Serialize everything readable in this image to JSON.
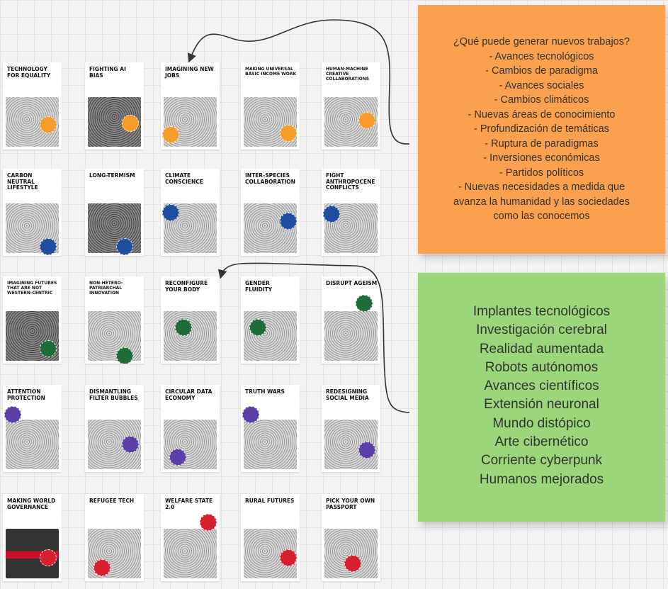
{
  "cards": [
    {
      "title": "TECHNOLOGY FOR EQUALITY",
      "badge": "#f59c2a",
      "tone": "light"
    },
    {
      "title": "FIGHTING AI BIAS",
      "badge": "#f59c2a",
      "tone": "dark"
    },
    {
      "title": "IMAGINING NEW JOBS",
      "badge": "#f59c2a",
      "tone": "light"
    },
    {
      "title": "MAKING UNIVERSAL BASIC INCOME WORK",
      "badge": "#f59c2a",
      "tone": "light"
    },
    {
      "title": "HUMAN-MACHINE CREATIVE COLLABORATIONS",
      "badge": "#f59c2a",
      "tone": "light"
    },
    {
      "title": "CARBON NEUTRAL LIFESTYLE",
      "badge": "#1f4ea1",
      "tone": "light"
    },
    {
      "title": "LONG-TERMISM",
      "badge": "#1f4ea1",
      "tone": "dark"
    },
    {
      "title": "CLIMATE CONSCIENCE",
      "badge": "#1f4ea1",
      "tone": "light"
    },
    {
      "title": "INTER-SPECIES COLLABORATION",
      "badge": "#1f4ea1",
      "tone": "light"
    },
    {
      "title": "FIGHT ANTHROPOCENE CONFLICTS",
      "badge": "#1f4ea1",
      "tone": "light"
    },
    {
      "title": "IMAGINING FUTURES THAT ARE NOT WESTERN-CENTRIC",
      "badge": "#1f6b3a",
      "tone": "dark"
    },
    {
      "title": "NON-HETERO-PATRIARCHAL INNOVATION",
      "badge": "#1f6b3a",
      "tone": "light"
    },
    {
      "title": "RECONFIGURE YOUR BODY",
      "badge": "#1f6b3a",
      "tone": "light"
    },
    {
      "title": "GENDER FLUIDITY",
      "badge": "#1f6b3a",
      "tone": "light"
    },
    {
      "title": "DISRUPT AGEISM",
      "badge": "#1f6b3a",
      "tone": "light"
    },
    {
      "title": "ATTENTION PROTECTION",
      "badge": "#5b3ea6",
      "tone": "light"
    },
    {
      "title": "DISMANTLING FILTER BUBBLES",
      "badge": "#5b3ea6",
      "tone": "light"
    },
    {
      "title": "CIRCULAR DATA ECONOMY",
      "badge": "#5b3ea6",
      "tone": "light"
    },
    {
      "title": "TRUTH WARS",
      "badge": "#5b3ea6",
      "tone": "light"
    },
    {
      "title": "REDESIGNING SOCIAL MEDIA",
      "badge": "#5b3ea6",
      "tone": "light"
    },
    {
      "title": "MAKING WORLD GOVERNANCE",
      "badge": "#d6202f",
      "tone": "red"
    },
    {
      "title": "REFUGEE TECH",
      "badge": "#d6202f",
      "tone": "light"
    },
    {
      "title": "WELFARE STATE 2.0",
      "badge": "#d6202f",
      "tone": "light"
    },
    {
      "title": "RURAL FUTURES",
      "badge": "#d6202f",
      "tone": "light"
    },
    {
      "title": "PICK YOUR OWN PASSPORT",
      "badge": "#d6202f",
      "tone": "light"
    }
  ],
  "notes": {
    "orange": {
      "color": "#fba04f",
      "lines": [
        "¿Qué puede generar nuevos trabajos?",
        "- Avances tecnológicos",
        "- Cambios de paradigma",
        "- Avances sociales",
        "- Cambios climáticos",
        "- Nuevas áreas de conocimiento",
        "- Profundización de temáticas",
        "- Ruptura de paradigmas",
        "- Inversiones económicas",
        "- Partidos políticos",
        "- Nuevas necesidades a medida que",
        "avanza la humanidad y las sociedades",
        "como las conocemos"
      ]
    },
    "green": {
      "color": "#9bd77a",
      "lines": [
        "Implantes tecnológicos",
        "Investigación cerebral",
        "Realidad aumentada",
        "Robots autónomos",
        "Avances científicos",
        "Extensión neuronal",
        "Mundo distópico",
        "Arte cibernético",
        "Corriente cyberpunk",
        "Humanos mejorados"
      ]
    }
  }
}
